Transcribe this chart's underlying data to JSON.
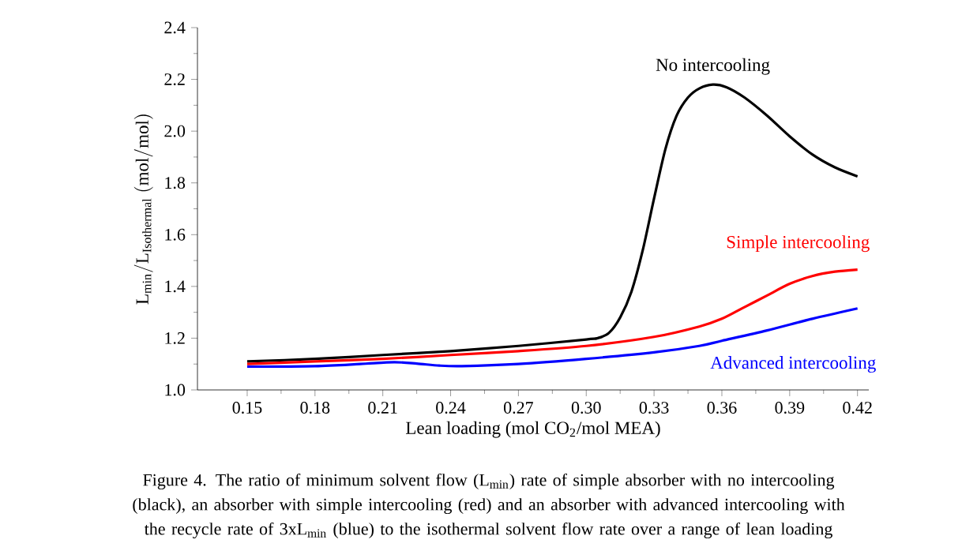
{
  "chart_data": {
    "type": "line",
    "xlabel": "Lean loading (mol CO$_{2}$/mol MEA)",
    "ylabel": "\\mathrm{L_{min}/L_{Isothermal}\\ (mol/mol)}",
    "annotations": [
      "Figure 4. The ratio of minimum solvent flow (L$_{min}$) rate of simple absorber with no intercooling (black), an absorber with simple intercooling (red) and an absorber with advanced intercooling with the recycle rate of 3xL$_{min}$ (blue) to the isothermal solvent flow rate over a range of lean loading"
    ],
    "xlim": [
      0.128,
      0.425
    ],
    "ylim": [
      1.0,
      2.4
    ],
    "xticks": [
      0.15,
      0.18,
      0.21,
      0.24,
      0.27,
      {
        "value": 0.3,
        "label": "0.30"
      },
      0.33,
      0.36,
      0.39,
      0.42
    ],
    "yticks": [
      {
        "value": 1.0,
        "label": "1.0"
      },
      1.2,
      1.4,
      1.6,
      1.8,
      {
        "value": 2.0,
        "label": "2.0"
      },
      2.2,
      2.4
    ],
    "line_style": "solid",
    "series": [
      {
        "name": "No intercooling",
        "color": "#000000",
        "x": [
          0.15,
          0.18,
          0.21,
          0.24,
          0.27,
          0.3,
          0.305,
          0.31,
          0.315,
          0.32,
          0.325,
          0.33,
          0.335,
          0.34,
          0.345,
          0.35,
          0.356,
          0.362,
          0.37,
          0.38,
          0.39,
          0.4,
          0.41,
          0.42
        ],
        "values": [
          1.11,
          1.12,
          1.135,
          1.15,
          1.17,
          1.195,
          1.2,
          1.22,
          1.28,
          1.38,
          1.54,
          1.74,
          1.93,
          2.06,
          2.13,
          2.165,
          2.18,
          2.17,
          2.13,
          2.06,
          1.98,
          1.91,
          1.86,
          1.825
        ]
      },
      {
        "name": "Simple intercooling",
        "color": "#ff0000",
        "x": [
          0.15,
          0.18,
          0.21,
          0.24,
          0.27,
          0.3,
          0.33,
          0.35,
          0.36,
          0.37,
          0.38,
          0.39,
          0.4,
          0.41,
          0.42
        ],
        "values": [
          1.1,
          1.11,
          1.12,
          1.135,
          1.15,
          1.17,
          1.205,
          1.245,
          1.275,
          1.32,
          1.365,
          1.41,
          1.44,
          1.457,
          1.465
        ]
      },
      {
        "name": "Advanced intercooling",
        "color": "#0000ff",
        "x": [
          0.15,
          0.18,
          0.2,
          0.215,
          0.225,
          0.235,
          0.245,
          0.27,
          0.3,
          0.33,
          0.35,
          0.36,
          0.38,
          0.4,
          0.42
        ],
        "values": [
          1.09,
          1.092,
          1.1,
          1.107,
          1.102,
          1.094,
          1.092,
          1.1,
          1.12,
          1.145,
          1.17,
          1.19,
          1.23,
          1.275,
          1.315
        ]
      }
    ]
  }
}
